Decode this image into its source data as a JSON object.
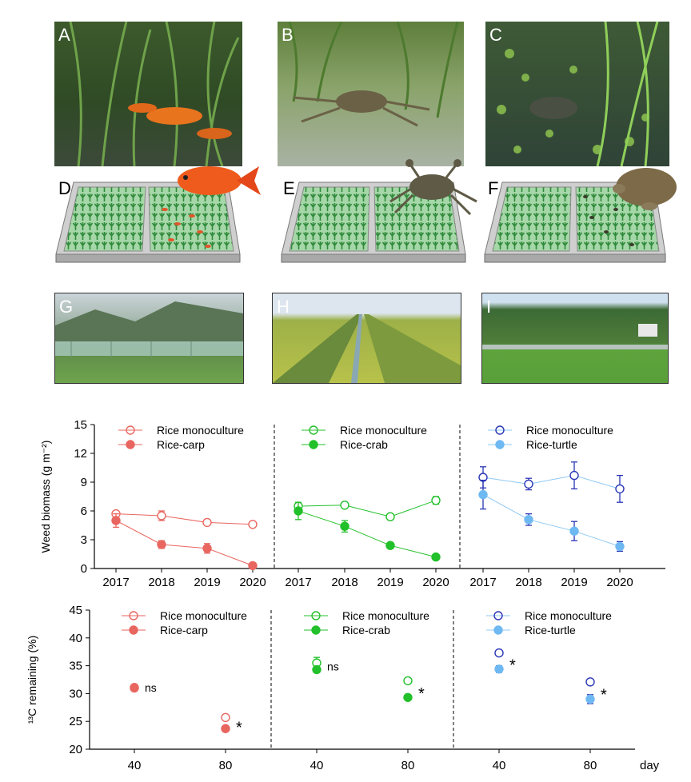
{
  "panels": {
    "photos_top": [
      {
        "letter": "A",
        "subject": "goldfish in rice paddy"
      },
      {
        "letter": "B",
        "subject": "crab in rice paddy"
      },
      {
        "letter": "C",
        "subject": "soft-shell turtle in rice paddy"
      }
    ],
    "diagrams": [
      {
        "letter": "D",
        "animal": "carp"
      },
      {
        "letter": "E",
        "animal": "crab"
      },
      {
        "letter": "F",
        "animal": "turtle"
      }
    ],
    "photos_field": [
      {
        "letter": "G"
      },
      {
        "letter": "H"
      },
      {
        "letter": "I"
      }
    ]
  },
  "colors": {
    "carp": "#e8665f",
    "crab": "#22c02a",
    "turtle_mono": "#2a35b5",
    "turtle_line": "#8ec9f5",
    "turtle_fill": "#6fb9f2"
  },
  "chart_data": [
    {
      "type": "line",
      "ylabel": "Weed biomass (g m⁻²)",
      "ylim": [
        0,
        15
      ],
      "yticks": [
        0,
        3,
        6,
        9,
        12,
        15
      ],
      "groups": [
        {
          "x": [
            "2017",
            "2018",
            "2019",
            "2020"
          ],
          "series": [
            {
              "name": "Rice monoculture",
              "values": [
                5.7,
                5.5,
                4.8,
                4.6
              ],
              "err": [
                0.3,
                0.5,
                0.2,
                0.2
              ]
            },
            {
              "name": "Rice-carp",
              "values": [
                5.0,
                2.5,
                2.1,
                0.3
              ],
              "err": [
                0.7,
                0.4,
                0.5,
                0.1
              ]
            }
          ]
        },
        {
          "x": [
            "2017",
            "2018",
            "2019",
            "2020"
          ],
          "series": [
            {
              "name": "Rice monoculture",
              "values": [
                6.5,
                6.6,
                5.4,
                7.1
              ],
              "err": [
                0.4,
                0.2,
                0.3,
                0.4
              ]
            },
            {
              "name": "Rice-crab",
              "values": [
                6.0,
                4.4,
                2.4,
                1.2
              ],
              "err": [
                0.9,
                0.6,
                0.3,
                0.1
              ]
            }
          ]
        },
        {
          "x": [
            "2017",
            "2018",
            "2019",
            "2020"
          ],
          "series": [
            {
              "name": "Rice monoculture",
              "values": [
                9.5,
                8.8,
                9.7,
                8.3
              ],
              "err": [
                1.1,
                0.6,
                1.4,
                1.4
              ]
            },
            {
              "name": "Rice-turtle",
              "values": [
                7.7,
                5.1,
                3.9,
                2.3
              ],
              "err": [
                1.5,
                0.6,
                1.0,
                0.5
              ]
            }
          ]
        }
      ]
    },
    {
      "type": "scatter",
      "ylabel": "¹³C remaining (%)",
      "ylim": [
        20,
        45
      ],
      "yticks": [
        20,
        25,
        30,
        35,
        40,
        45
      ],
      "xunit": "day",
      "groups": [
        {
          "x": [
            "40",
            "80"
          ],
          "annotations": [
            "ns",
            "*"
          ],
          "series": [
            {
              "name": "Rice monoculture",
              "values": [
                31.1,
                25.7
              ],
              "err": [
                0.2,
                0.3
              ]
            },
            {
              "name": "Rice-carp",
              "values": [
                31.0,
                23.7
              ],
              "err": [
                0.2,
                0.4
              ]
            }
          ]
        },
        {
          "x": [
            "40",
            "80"
          ],
          "annotations": [
            "ns",
            "*"
          ],
          "series": [
            {
              "name": "Rice monoculture",
              "values": [
                35.5,
                32.3
              ],
              "err": [
                1.0,
                0.4
              ]
            },
            {
              "name": "Rice-crab",
              "values": [
                34.3,
                29.3
              ],
              "err": [
                0.3,
                0.3
              ]
            }
          ]
        },
        {
          "x": [
            "40",
            "80"
          ],
          "annotations": [
            "*",
            "*"
          ],
          "series": [
            {
              "name": "Rice monoculture",
              "values": [
                37.3,
                32.1
              ],
              "err": [
                0.4,
                0.3
              ]
            },
            {
              "name": "Rice-turtle",
              "values": [
                34.4,
                29.0
              ],
              "err": [
                0.6,
                0.8
              ]
            }
          ]
        }
      ]
    }
  ]
}
